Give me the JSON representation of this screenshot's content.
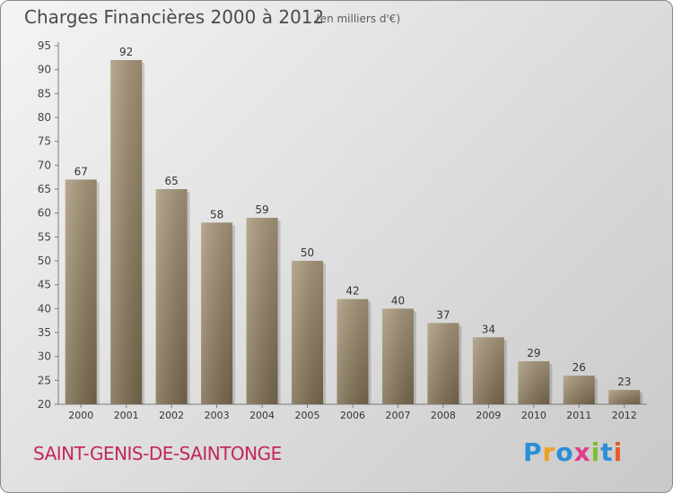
{
  "title": "Charges Financières 2000 à 2012",
  "subtitle": "(en milliers d'€)",
  "commune": "SAINT-GENIS-DE-SAINTONGE",
  "logo": {
    "letters": [
      "P",
      "r",
      "o",
      "x",
      "i",
      "t",
      "i"
    ],
    "colors": [
      "#2a8fd6",
      "#f0a020",
      "#2a8fd6",
      "#e03c8a",
      "#7cbf2e",
      "#2a8fd6",
      "#e85a2a"
    ]
  },
  "chart_data": {
    "type": "bar",
    "categories": [
      "2000",
      "2001",
      "2002",
      "2003",
      "2004",
      "2005",
      "2006",
      "2007",
      "2008",
      "2009",
      "2010",
      "2011",
      "2012"
    ],
    "values": [
      67,
      92,
      65,
      58,
      59,
      50,
      42,
      40,
      37,
      34,
      29,
      26,
      23
    ],
    "title": "Charges Financières 2000 à 2012",
    "ylim": [
      20,
      95
    ],
    "yticks": [
      20,
      25,
      30,
      35,
      40,
      45,
      50,
      55,
      60,
      65,
      70,
      75,
      80,
      85,
      90,
      95
    ],
    "grid": false,
    "bar_color": "#8f7c5f"
  }
}
